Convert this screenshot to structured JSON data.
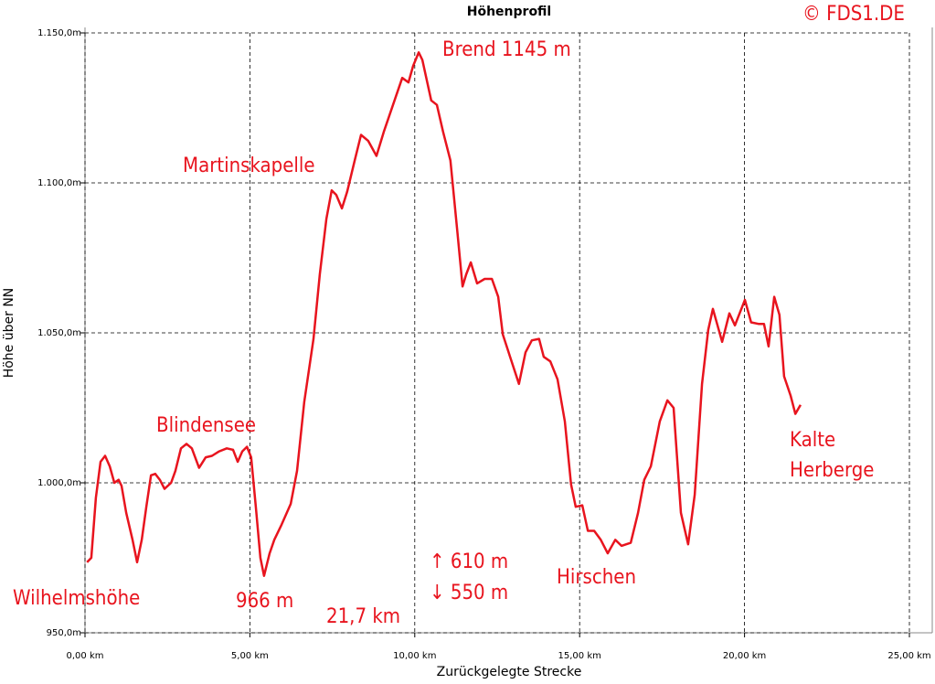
{
  "chart_data": {
    "type": "line",
    "title": "Höhenprofil",
    "xlabel": "Zurückgelegte Strecke",
    "ylabel": "Höhe über NN",
    "color": "#e8141e",
    "grid": true,
    "xlim": [
      0,
      25
    ],
    "ylim": [
      950,
      1150
    ],
    "xticks": [
      {
        "value": 0,
        "label": "0,00 km"
      },
      {
        "value": 5,
        "label": "5,00 km"
      },
      {
        "value": 10,
        "label": "10,00 km"
      },
      {
        "value": 15,
        "label": "15,00 km"
      },
      {
        "value": 20,
        "label": "20,00 km"
      },
      {
        "value": 25,
        "label": "25,00 km"
      }
    ],
    "yticks": [
      {
        "value": 950,
        "label": "950,0m"
      },
      {
        "value": 1000,
        "label": "1.000,0m"
      },
      {
        "value": 1050,
        "label": "1.050,0m"
      },
      {
        "value": 1100,
        "label": "1.100,0m"
      },
      {
        "value": 1150,
        "label": "1.150,0m"
      }
    ],
    "annotations": [
      "© FDS1.DE",
      "Brend 1145 m",
      "Martinskapelle",
      "Blindensee",
      "Wilhelmshöhe",
      "966 m",
      "21,7 km",
      "↑ 610 m",
      "↓ 550 m",
      "Hirschen",
      "Kalte",
      "Herberge"
    ],
    "x": [
      0.06,
      0.19,
      0.33,
      0.47,
      0.61,
      0.75,
      0.89,
      1.02,
      1.11,
      1.25,
      1.44,
      1.58,
      1.72,
      1.86,
      2.0,
      2.13,
      2.27,
      2.41,
      2.61,
      2.74,
      2.91,
      3.08,
      3.24,
      3.46,
      3.66,
      3.85,
      4.07,
      4.3,
      4.49,
      4.63,
      4.77,
      4.91,
      5.04,
      5.18,
      5.32,
      5.43,
      5.6,
      5.74,
      5.96,
      6.24,
      6.43,
      6.65,
      6.93,
      7.12,
      7.32,
      7.48,
      7.62,
      7.79,
      7.95,
      8.18,
      8.37,
      8.59,
      8.84,
      9.06,
      9.34,
      9.62,
      9.81,
      9.95,
      10.12,
      10.23,
      10.5,
      10.67,
      10.86,
      11.08,
      11.28,
      11.45,
      11.56,
      11.7,
      11.89,
      12.12,
      12.34,
      12.53,
      12.67,
      12.89,
      13.16,
      13.36,
      13.55,
      13.77,
      13.91,
      14.11,
      14.33,
      14.55,
      14.74,
      14.88,
      15.08,
      15.25,
      15.44,
      15.64,
      15.85,
      16.08,
      16.27,
      16.55,
      16.77,
      16.96,
      17.16,
      17.43,
      17.66,
      17.85,
      18.07,
      18.29,
      18.49,
      18.71,
      18.9,
      19.04,
      19.32,
      19.54,
      19.71,
      20.01,
      20.2,
      20.42,
      20.59,
      20.73,
      20.9,
      21.06,
      21.2,
      21.4,
      21.54,
      21.7
    ],
    "values": [
      973.5,
      975,
      995,
      1007,
      1009,
      1005.5,
      1000,
      1001,
      999,
      990,
      981,
      973.5,
      981,
      992,
      1002.5,
      1003,
      1001,
      998,
      1000,
      1004,
      1011.5,
      1013,
      1011.5,
      1005,
      1008.5,
      1009,
      1010.5,
      1011.5,
      1011,
      1007,
      1010.5,
      1012,
      1008.5,
      992,
      975,
      969,
      976.5,
      981,
      986,
      993,
      1004,
      1027,
      1048,
      1069.5,
      1088,
      1097.5,
      1096,
      1091.5,
      1097,
      1107.5,
      1116,
      1114,
      1109,
      1117,
      1126,
      1135,
      1133.5,
      1139,
      1143.5,
      1141,
      1127.5,
      1126,
      1117,
      1107.5,
      1085,
      1065.5,
      1069.5,
      1073.5,
      1066.5,
      1068,
      1068,
      1062,
      1049.5,
      1042,
      1033,
      1043.5,
      1047.5,
      1048,
      1042,
      1040.5,
      1034.5,
      1020.5,
      999.5,
      992,
      992.5,
      984,
      984,
      981,
      976.5,
      981,
      979,
      980,
      990,
      1001,
      1005.5,
      1020.5,
      1027.5,
      1025,
      990,
      979.5,
      996,
      1033,
      1051,
      1058,
      1047,
      1056.5,
      1052.5,
      1061,
      1053.5,
      1053,
      1053,
      1045.5,
      1062,
      1056,
      1035.5,
      1029,
      1023,
      1026
    ]
  }
}
